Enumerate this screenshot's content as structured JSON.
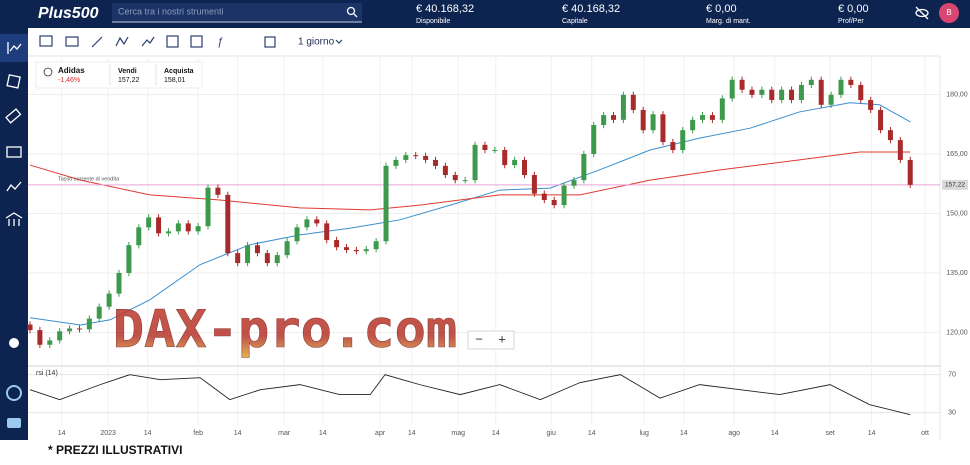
{
  "header": {
    "logo": "Plus500",
    "search_placeholder": "Cerca tra i nostri strumenti",
    "stats": [
      {
        "value": "€ 40.168,32",
        "label": "Disponibile"
      },
      {
        "value": "€ 40.168,32",
        "label": "Capitale"
      },
      {
        "value": "€ 0,00",
        "label": "Marg. di mant."
      },
      {
        "value": "€ 0,00",
        "label": "Prof/Per"
      }
    ],
    "avatar": "B"
  },
  "toolbar": {
    "timeframe": "1 giorno"
  },
  "instrument": {
    "name": "Adidas",
    "change": "-1,46%",
    "sell_label": "Vendi",
    "sell": "157,22",
    "buy_label": "Acquista",
    "buy": "158,01"
  },
  "zoom": {
    "minus": "−",
    "plus": "+"
  },
  "watermark": "DAX-pro.com",
  "footer": "* PREZZI ILLUSTRATIVI",
  "chart_data": [
    {
      "type": "candlestick",
      "up_color": "#3d9a4c",
      "down_color": "#a82a2a",
      "open": [
        122.0,
        120.6,
        116.9,
        118.0,
        120.3,
        121.0,
        120.8,
        123.5,
        126.5,
        129.8,
        135.0,
        142.0,
        146.5,
        149.0,
        145.0,
        145.5,
        147.5,
        145.5,
        146.8,
        156.5,
        154.7,
        140.0,
        137.5,
        142.0,
        140.0,
        137.5,
        139.5,
        143.0,
        146.5,
        148.5,
        147.5,
        143.3,
        141.5,
        140.8,
        140.5,
        141.0,
        143.0,
        162.0,
        163.5,
        164.7,
        164.5,
        163.5,
        162.0,
        159.7,
        158.4,
        158.4,
        167.3,
        166.0,
        166.0,
        162.2,
        163.5,
        159.7,
        155.0,
        153.4,
        152.1,
        157.0,
        158.4,
        165.0,
        172.3,
        174.8,
        173.6,
        179.9,
        176.1,
        171.0,
        175.0,
        168.0,
        166.0,
        171.0,
        173.6,
        174.8,
        173.6,
        179.0,
        183.7,
        181.2,
        179.9,
        181.2,
        178.6,
        181.2,
        178.6,
        182.4,
        183.7,
        177.4,
        179.9,
        183.7,
        182.4,
        178.6,
        176.1,
        171.0,
        168.5,
        163.5
      ],
      "high": [
        122.8,
        121.4,
        118.8,
        121.1,
        121.8,
        121.8,
        124.3,
        127.3,
        130.6,
        135.8,
        142.8,
        147.3,
        149.8,
        149.8,
        146.3,
        148.3,
        148.3,
        147.6,
        157.3,
        157.3,
        155.5,
        140.8,
        142.8,
        142.8,
        140.8,
        140.3,
        143.8,
        147.3,
        149.3,
        149.3,
        148.3,
        144.1,
        142.3,
        141.6,
        141.8,
        143.8,
        162.8,
        164.3,
        165.5,
        165.5,
        165.3,
        164.3,
        162.8,
        160.5,
        159.2,
        168.1,
        168.1,
        166.8,
        166.8,
        164.3,
        164.3,
        160.5,
        155.8,
        154.2,
        157.8,
        159.2,
        165.8,
        173.1,
        175.6,
        175.6,
        180.7,
        180.7,
        176.9,
        175.8,
        175.8,
        168.8,
        171.8,
        174.4,
        175.6,
        175.6,
        179.8,
        184.5,
        184.5,
        182.0,
        182.0,
        182.0,
        182.0,
        182.0,
        183.2,
        184.5,
        184.5,
        180.7,
        184.5,
        184.5,
        183.2,
        179.4,
        176.9,
        171.8,
        169.3,
        164.3
      ],
      "low": [
        119.8,
        116.1,
        116.1,
        117.2,
        119.5,
        120.0,
        120.0,
        122.7,
        125.7,
        129.0,
        134.2,
        141.2,
        145.7,
        144.2,
        144.2,
        144.7,
        144.7,
        144.7,
        146.0,
        153.9,
        139.2,
        136.7,
        136.7,
        139.2,
        136.7,
        136.7,
        138.7,
        142.2,
        145.7,
        146.7,
        142.5,
        140.7,
        140.0,
        139.7,
        139.7,
        140.2,
        142.2,
        161.2,
        162.7,
        163.7,
        162.7,
        161.2,
        158.9,
        157.6,
        157.6,
        157.6,
        165.2,
        165.2,
        161.4,
        161.4,
        158.9,
        154.2,
        152.6,
        151.3,
        151.3,
        156.2,
        157.6,
        164.2,
        171.5,
        172.8,
        172.8,
        175.3,
        170.2,
        170.2,
        167.2,
        165.2,
        165.2,
        170.2,
        172.8,
        172.8,
        172.8,
        178.2,
        180.4,
        179.1,
        179.1,
        177.8,
        177.8,
        177.8,
        177.8,
        181.6,
        176.6,
        176.6,
        179.1,
        181.6,
        177.8,
        175.3,
        170.2,
        167.7,
        162.7,
        156.42
      ],
      "close": [
        120.6,
        116.9,
        118.0,
        120.3,
        121.0,
        120.8,
        123.5,
        126.5,
        129.8,
        135.0,
        142.0,
        146.5,
        149.0,
        145.0,
        145.5,
        147.5,
        145.5,
        146.8,
        156.5,
        154.7,
        140.0,
        137.5,
        142.0,
        140.0,
        137.5,
        139.5,
        143.0,
        146.5,
        148.5,
        147.5,
        143.3,
        141.5,
        140.8,
        140.5,
        141.0,
        143.0,
        162.0,
        163.5,
        164.7,
        164.5,
        163.5,
        162.0,
        159.7,
        158.4,
        158.4,
        167.3,
        166.0,
        166.0,
        162.2,
        163.5,
        159.7,
        155.0,
        153.4,
        152.1,
        157.0,
        158.4,
        165.0,
        172.3,
        174.8,
        173.6,
        179.9,
        176.1,
        171.0,
        175.0,
        168.0,
        166.0,
        171.0,
        173.6,
        174.8,
        173.6,
        179.0,
        183.7,
        181.2,
        179.9,
        181.2,
        178.6,
        181.2,
        178.6,
        182.4,
        183.7,
        177.4,
        179.9,
        183.7,
        182.4,
        178.6,
        176.1,
        171.0,
        168.5,
        163.5,
        157.22
      ],
      "lines": [
        {
          "color": "#3a8fd0",
          "x": [
            0,
            5.1,
            8.1,
            12.1,
            17.2,
            22.2,
            27.3,
            32.4,
            37.4,
            42.5,
            47.5,
            52.6,
            57.6,
            62.7,
            67.7,
            72.8,
            77.8,
            82.9,
            85.9,
            89.0
          ],
          "values": [
            123.7,
            121.9,
            123.2,
            128.2,
            137.1,
            142.1,
            144.6,
            146.3,
            148.4,
            152.1,
            155.9,
            156.4,
            161.0,
            166.0,
            169.0,
            171.5,
            175.6,
            177.9,
            177.4,
            173.1
          ]
        },
        {
          "color": "#e03a2f",
          "x": [
            0,
            5.1,
            12.1,
            19.2,
            27.3,
            34.4,
            39.4,
            47.5,
            55.6,
            62.7,
            69.8,
            77.8,
            83.9,
            89.0
          ],
          "values": [
            162.2,
            158.4,
            154.7,
            153.4,
            151.4,
            150.9,
            152.1,
            154.7,
            154.7,
            158.4,
            161.0,
            163.5,
            165.5,
            165.5
          ]
        }
      ],
      "current_price": {
        "value": 157.22,
        "label": "157,22"
      },
      "current_price_label": "Tasso corrente di vendita",
      "current_price_color": "#e9a3d8",
      "xlim": [
        0,
        91
      ],
      "ylim": [
        111.8,
        189.7
      ],
      "xticks": [
        {
          "value": 3.2,
          "label": "14"
        },
        {
          "value": 7.9,
          "label": "2023"
        },
        {
          "value": 11.9,
          "label": "14"
        },
        {
          "value": 17,
          "label": "feb"
        },
        {
          "value": 21,
          "label": "14"
        },
        {
          "value": 25.7,
          "label": "mar"
        },
        {
          "value": 29.6,
          "label": "14"
        },
        {
          "value": 35.4,
          "label": "apr"
        },
        {
          "value": 38.6,
          "label": "14"
        },
        {
          "value": 43.3,
          "label": "mag"
        },
        {
          "value": 47.1,
          "label": "14"
        },
        {
          "value": 52.7,
          "label": "giu"
        },
        {
          "value": 56.8,
          "label": "14"
        },
        {
          "value": 62.1,
          "label": "lug"
        },
        {
          "value": 66.1,
          "label": "14"
        },
        {
          "value": 71.2,
          "label": "ago"
        },
        {
          "value": 75.3,
          "label": "14"
        },
        {
          "value": 80.9,
          "label": "set"
        },
        {
          "value": 85.1,
          "label": "14"
        },
        {
          "value": 90.5,
          "label": "ott"
        }
      ],
      "yticks": [
        {
          "value": 120,
          "label": "120,00"
        },
        {
          "value": 135,
          "label": "135,00"
        },
        {
          "value": 150,
          "label": "150,00"
        },
        {
          "value": 165,
          "label": "165,00"
        },
        {
          "value": 180,
          "label": "180,00"
        }
      ],
      "grid": true
    },
    {
      "type": "line",
      "title": "rsi (14)",
      "color": "#222222",
      "fill_color": "#7a7a7a",
      "x": [
        0,
        3,
        7.1,
        10.1,
        13.2,
        17.2,
        20.2,
        23.3,
        27.3,
        31.3,
        34.4,
        35.9,
        39.4,
        43.5,
        47.5,
        51.6,
        55.6,
        59.7,
        63.7,
        67.7,
        71.8,
        75.8,
        80.9,
        84.9,
        89
      ],
      "values": [
        54.2,
        43.7,
        59.5,
        70,
        64.7,
        66.8,
        43.7,
        54.2,
        59.5,
        49,
        49,
        70,
        59.5,
        49,
        59.5,
        43.7,
        61.6,
        70,
        45.3,
        59.5,
        54.2,
        49,
        59.5,
        38.4,
        27.9
      ],
      "xlim": [
        0,
        91
      ],
      "ylim": [
        17,
        77
      ],
      "yticks": [
        30,
        70
      ]
    }
  ]
}
